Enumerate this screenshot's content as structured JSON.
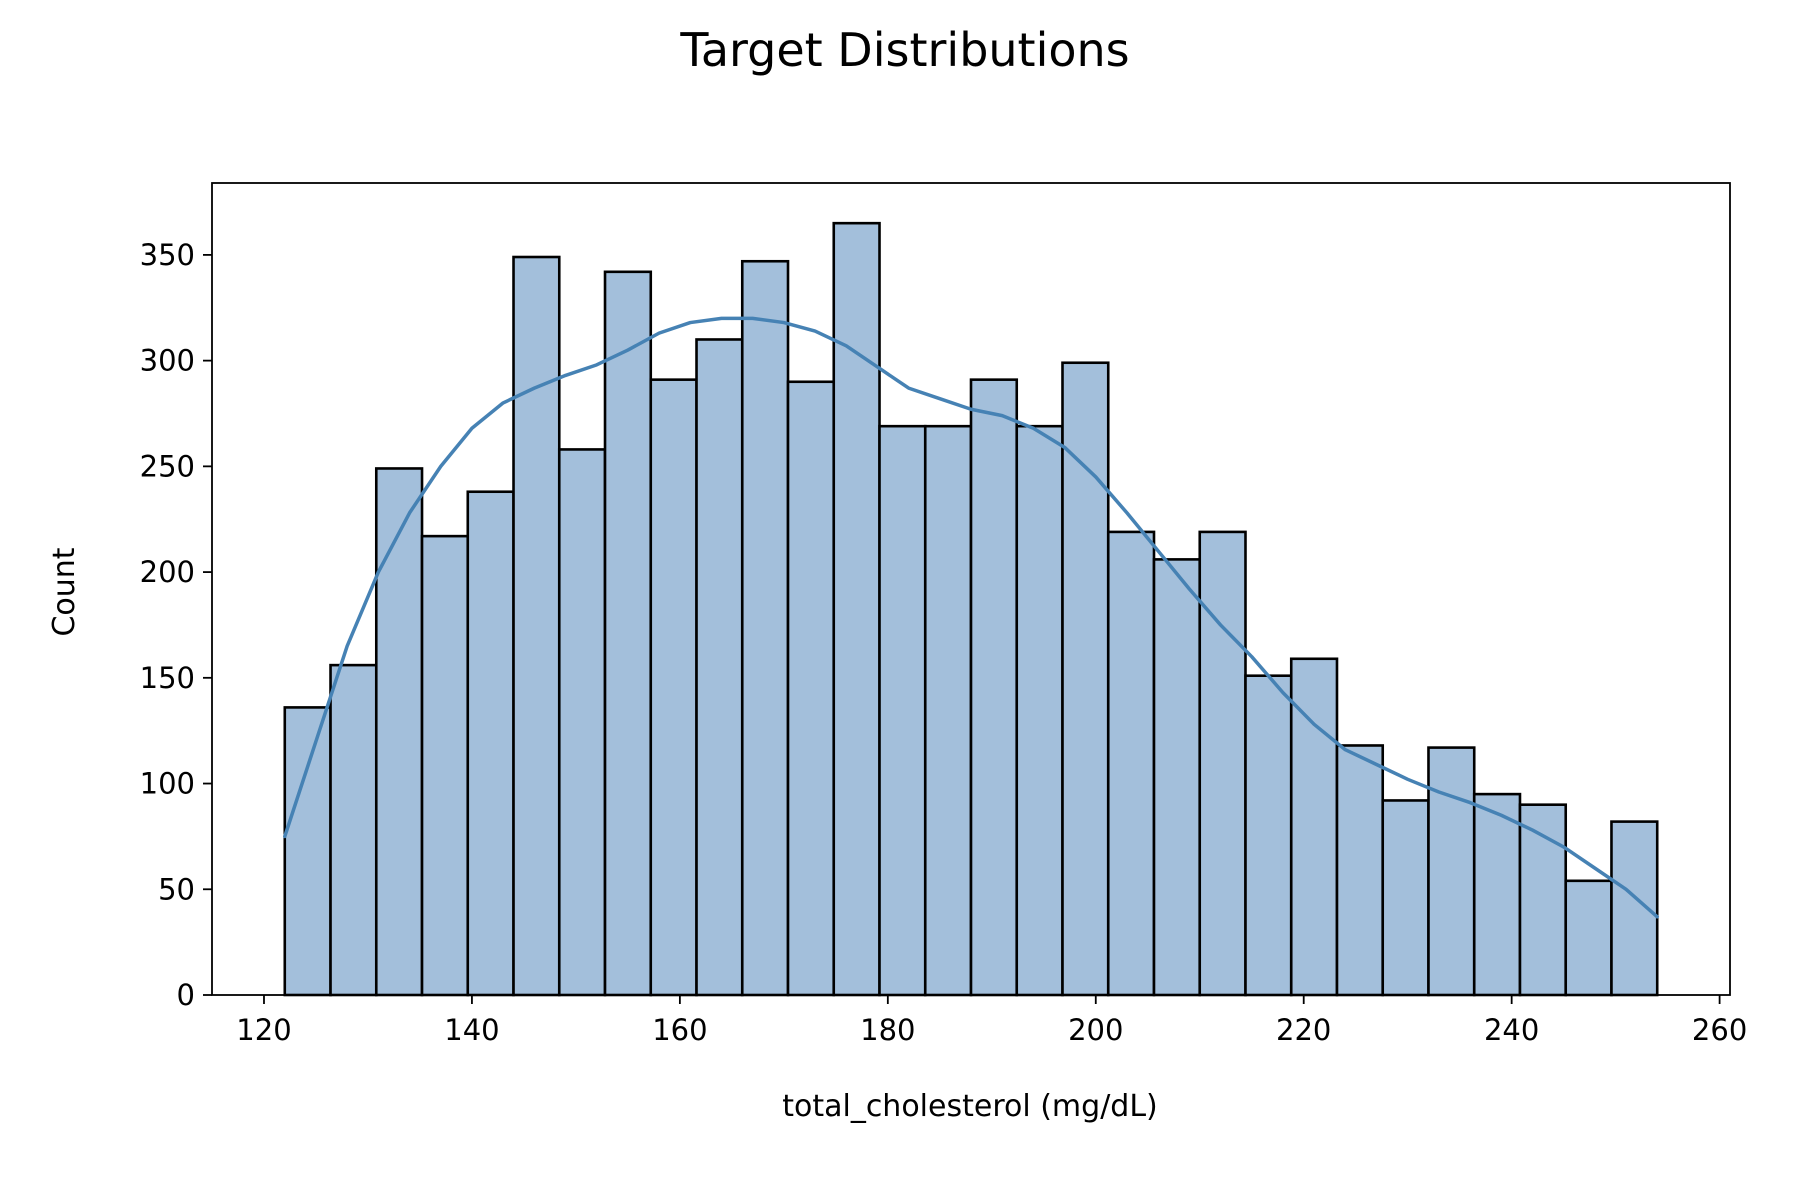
{
  "chart_data": {
    "type": "bar",
    "suptitle": "Target Distributions",
    "xlabel": "total_cholesterol (mg/dL)",
    "ylabel": "Count",
    "xlim": [
      115,
      261
    ],
    "ylim": [
      0,
      384
    ],
    "xticks": [
      120,
      140,
      160,
      180,
      200,
      220,
      240,
      260
    ],
    "yticks": [
      0,
      50,
      100,
      150,
      200,
      250,
      300,
      350
    ],
    "bin_edges": [
      122,
      126.4,
      130.8,
      135.2,
      139.6,
      144,
      148.4,
      152.8,
      157.2,
      161.6,
      166,
      170.4,
      174.8,
      179.2,
      183.6,
      188,
      192.4,
      196.8,
      201.2,
      205.6,
      210,
      214.4,
      218.8,
      223.2,
      227.6,
      232,
      236.4,
      240.8,
      245.2,
      249.6,
      254
    ],
    "counts": [
      136,
      156,
      249,
      217,
      238,
      349,
      258,
      342,
      291,
      310,
      347,
      290,
      365,
      269,
      269,
      291,
      269,
      299,
      219,
      206,
      219,
      151,
      159,
      118,
      92,
      117,
      95,
      90,
      54,
      82
    ],
    "kde": {
      "x": [
        122,
        125,
        128,
        131,
        134,
        137,
        140,
        143,
        146,
        149,
        152,
        155,
        158,
        161,
        164,
        167,
        170,
        173,
        176,
        179,
        182,
        185,
        188,
        191,
        194,
        197,
        200,
        203,
        206,
        209,
        212,
        215,
        218,
        221,
        224,
        227,
        230,
        233,
        236,
        239,
        242,
        245,
        248,
        251,
        254
      ],
      "y": [
        75,
        120,
        165,
        200,
        228,
        250,
        268,
        280,
        287,
        293,
        298,
        305,
        313,
        318,
        320,
        320,
        318,
        314,
        307,
        297,
        287,
        282,
        277,
        274,
        268,
        259,
        245,
        228,
        210,
        192,
        175,
        160,
        143,
        128,
        116,
        109,
        102,
        96,
        91,
        85,
        78,
        70,
        60,
        50,
        37
      ]
    },
    "colors": {
      "bar_fill": "#a3bfdb",
      "bar_edge": "#000000",
      "kde_line": "#4682b4"
    },
    "grid": false
  }
}
